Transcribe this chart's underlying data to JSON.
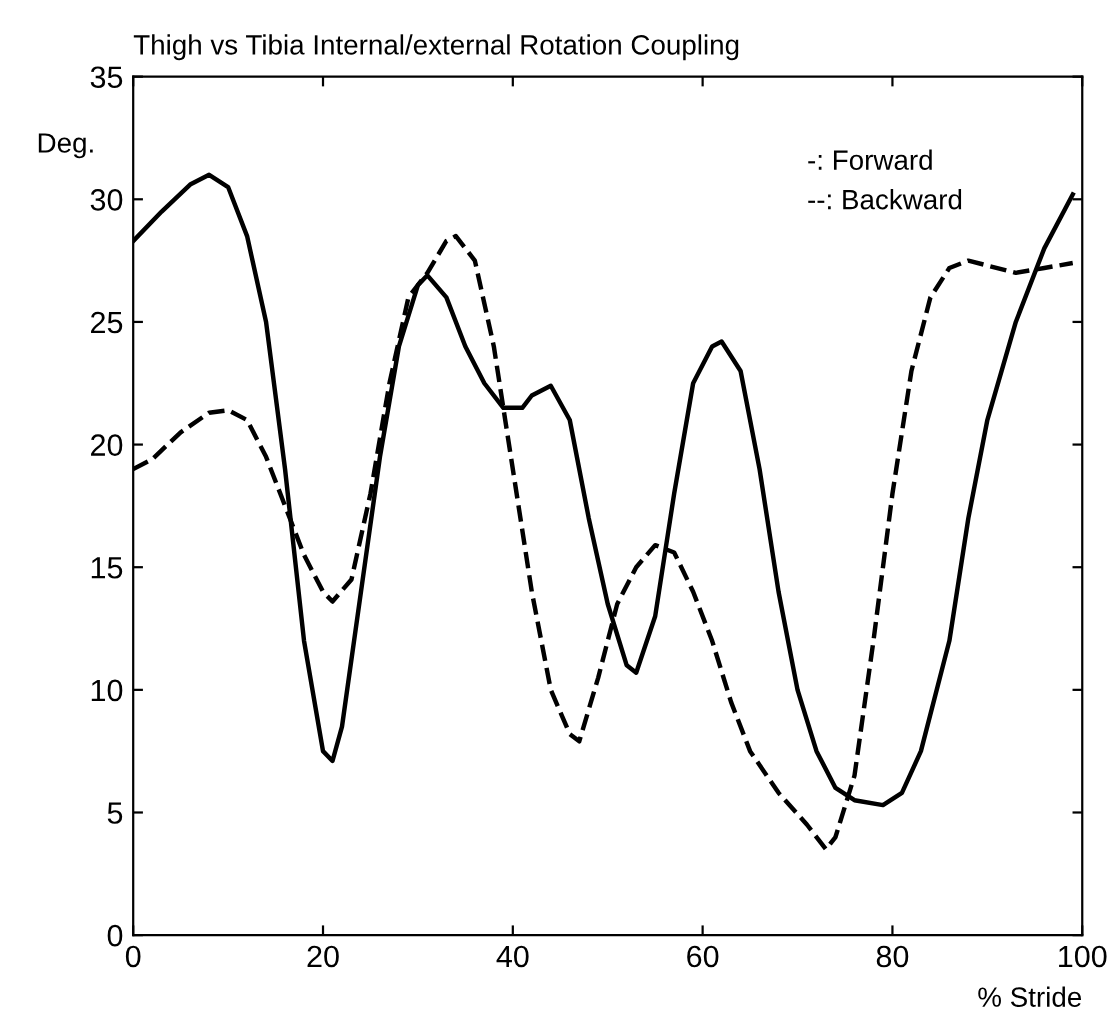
{
  "chart_data": {
    "type": "line",
    "title": "Thigh vs Tibia Internal/external Rotation Coupling",
    "xlabel": "% Stride",
    "ylabel": "Deg.",
    "xlim": [
      0,
      100
    ],
    "ylim": [
      0,
      35
    ],
    "xticks": [
      0,
      20,
      40,
      60,
      80,
      100
    ],
    "yticks": [
      0,
      5,
      10,
      15,
      20,
      25,
      30,
      35
    ],
    "grid": false,
    "annotations": [
      "-: Forward",
      "--: Backward"
    ],
    "series": [
      {
        "color": "#000000",
        "line_style": "solid",
        "x": [
          0,
          3,
          6,
          8,
          10,
          12,
          14,
          16,
          18,
          20,
          21,
          22,
          24,
          26,
          28,
          30,
          31,
          33,
          35,
          37,
          39,
          41,
          42,
          44,
          46,
          48,
          50,
          52,
          53,
          55,
          57,
          59,
          61,
          62,
          64,
          66,
          68,
          70,
          72,
          74,
          76,
          79,
          81,
          83,
          86,
          88,
          90,
          93,
          96,
          99
        ],
        "values": [
          28.3,
          29.5,
          30.6,
          31,
          30.5,
          28.5,
          25,
          19,
          12,
          7.5,
          7.1,
          8.5,
          14,
          19.5,
          24,
          26.5,
          26.9,
          26,
          24,
          22.5,
          21.5,
          21.5,
          22,
          22.4,
          21,
          17,
          13.5,
          11,
          10.7,
          13,
          18,
          22.5,
          24,
          24.2,
          23,
          19,
          14,
          10,
          7.5,
          6,
          5.5,
          5.3,
          5.8,
          7.5,
          12,
          17,
          21,
          25,
          28,
          30.2
        ]
      },
      {
        "color": "#000000",
        "line_style": "dashed",
        "x": [
          0,
          2,
          5,
          8,
          10,
          12,
          14,
          16,
          18,
          20,
          21,
          23,
          25,
          27,
          29,
          31,
          33,
          34,
          36,
          38,
          40,
          42,
          44,
          46,
          47,
          49,
          51,
          53,
          55,
          57,
          59,
          61,
          63,
          65,
          68,
          71,
          73,
          74,
          76,
          78,
          80,
          82,
          84,
          86,
          88,
          90,
          93,
          96,
          99
        ],
        "values": [
          19,
          19.4,
          20.5,
          21.3,
          21.4,
          21,
          19.5,
          17.5,
          15.5,
          14,
          13.6,
          14.5,
          18,
          22.5,
          26,
          27,
          28.3,
          28.5,
          27.5,
          24,
          19,
          14,
          10,
          8.2,
          7.9,
          10.5,
          13.5,
          15,
          15.9,
          15.6,
          14,
          12,
          9.5,
          7.5,
          5.8,
          4.5,
          3.5,
          4,
          6.5,
          12,
          18,
          23,
          26,
          27.2,
          27.5,
          27.3,
          27,
          27.2,
          27.4
        ]
      }
    ]
  }
}
